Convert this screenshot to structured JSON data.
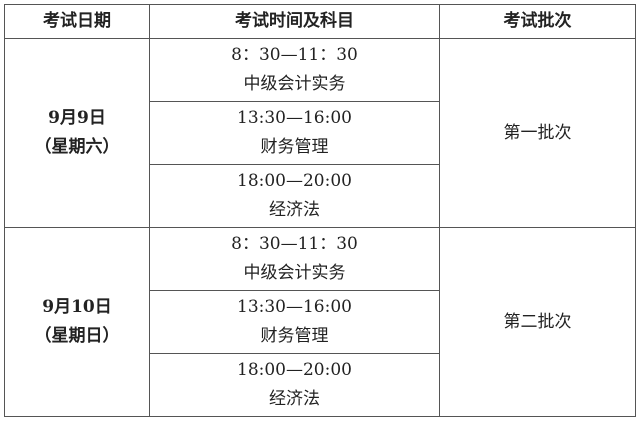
{
  "headers": [
    "考试日期",
    "考试时间及科目",
    "考试批次"
  ],
  "groups": [
    {
      "date": "9月9日",
      "weekday": "（星期六）",
      "batch": "第一批次",
      "sessions": [
        {
          "time": "8：30—11：30",
          "subject": "中级会计实务"
        },
        {
          "time": "13:30—16:00",
          "subject": "财务管理"
        },
        {
          "time": "18:00—20:00",
          "subject": "经济法"
        }
      ]
    },
    {
      "date": "9月10日",
      "weekday": "（星期日）",
      "batch": "第二批次",
      "sessions": [
        {
          "time": "8：30—11：30",
          "subject": "中级会计实务"
        },
        {
          "time": "13:30—16:00",
          "subject": "财务管理"
        },
        {
          "time": "18:00—20:00",
          "subject": "经济法"
        }
      ]
    }
  ]
}
